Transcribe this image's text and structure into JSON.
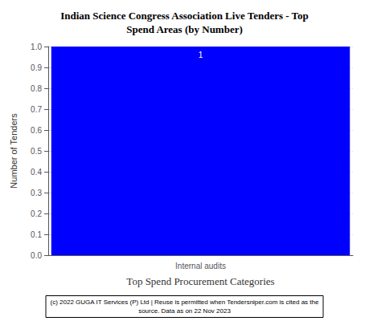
{
  "chart_data": {
    "type": "bar",
    "title": "Indian Science Congress Association Live Tenders - Top\nSpend Areas (by Number)",
    "categories": [
      "Internal audits"
    ],
    "values": [
      1
    ],
    "color": "#0000FF",
    "xlabel": "Top Spend Procurement Categories",
    "ylabel": "Number of Tenders",
    "ylim": [
      0.0,
      1.0
    ],
    "yticks": [
      {
        "value": 0.0,
        "label": "0.0"
      },
      0.1,
      0.2,
      0.3,
      0.4,
      0.5,
      0.6,
      0.7,
      0.8,
      0.9,
      {
        "value": 1.0,
        "label": "1.0"
      }
    ],
    "grid": true,
    "data_labels": true,
    "annotation": "(c) 2022 GUGA IT Services (P) Ltd | Reuse is permitted when Tendersniper.com is cited as the\nsource. Data as on 22 Nov 2023"
  }
}
